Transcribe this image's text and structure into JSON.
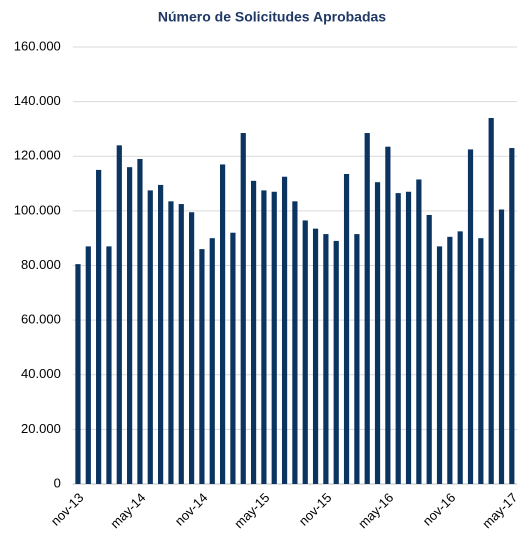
{
  "chart_data": {
    "type": "bar",
    "title": "Número de Solicitudes Aprobadas",
    "categories": [
      "nov-13",
      null,
      null,
      null,
      null,
      null,
      "may-14",
      null,
      null,
      null,
      null,
      null,
      "nov-14",
      null,
      null,
      null,
      null,
      null,
      "may-15",
      null,
      null,
      null,
      null,
      null,
      "nov-15",
      null,
      null,
      null,
      null,
      null,
      "may-16",
      null,
      null,
      null,
      null,
      null,
      "nov-16",
      null,
      null,
      null,
      null,
      null,
      "may-17"
    ],
    "values": [
      80500,
      87000,
      115000,
      87000,
      124000,
      116000,
      119000,
      107500,
      109500,
      103500,
      102500,
      99500,
      86000,
      90000,
      117000,
      92000,
      128500,
      111000,
      107500,
      107000,
      112500,
      103500,
      96500,
      93500,
      91500,
      89000,
      113500,
      91500,
      128500,
      110500,
      123500,
      106500,
      107000,
      111500,
      98500,
      87000,
      90500,
      92500,
      122500,
      90000,
      134000,
      100500,
      123000
    ],
    "color": "#0b3461",
    "ylim": [
      0,
      160000
    ],
    "yticks": [
      0,
      {
        "value": 20000,
        "label": "20.000"
      },
      {
        "value": 40000,
        "label": "40.000"
      },
      {
        "value": 60000,
        "label": "60.000"
      },
      {
        "value": 80000,
        "label": "80.000"
      },
      {
        "value": 100000,
        "label": "100.000"
      },
      {
        "value": 120000,
        "label": "120.000"
      },
      {
        "value": 140000,
        "label": "140.000"
      },
      {
        "value": 160000,
        "label": "160.000"
      }
    ],
    "grid": true
  }
}
